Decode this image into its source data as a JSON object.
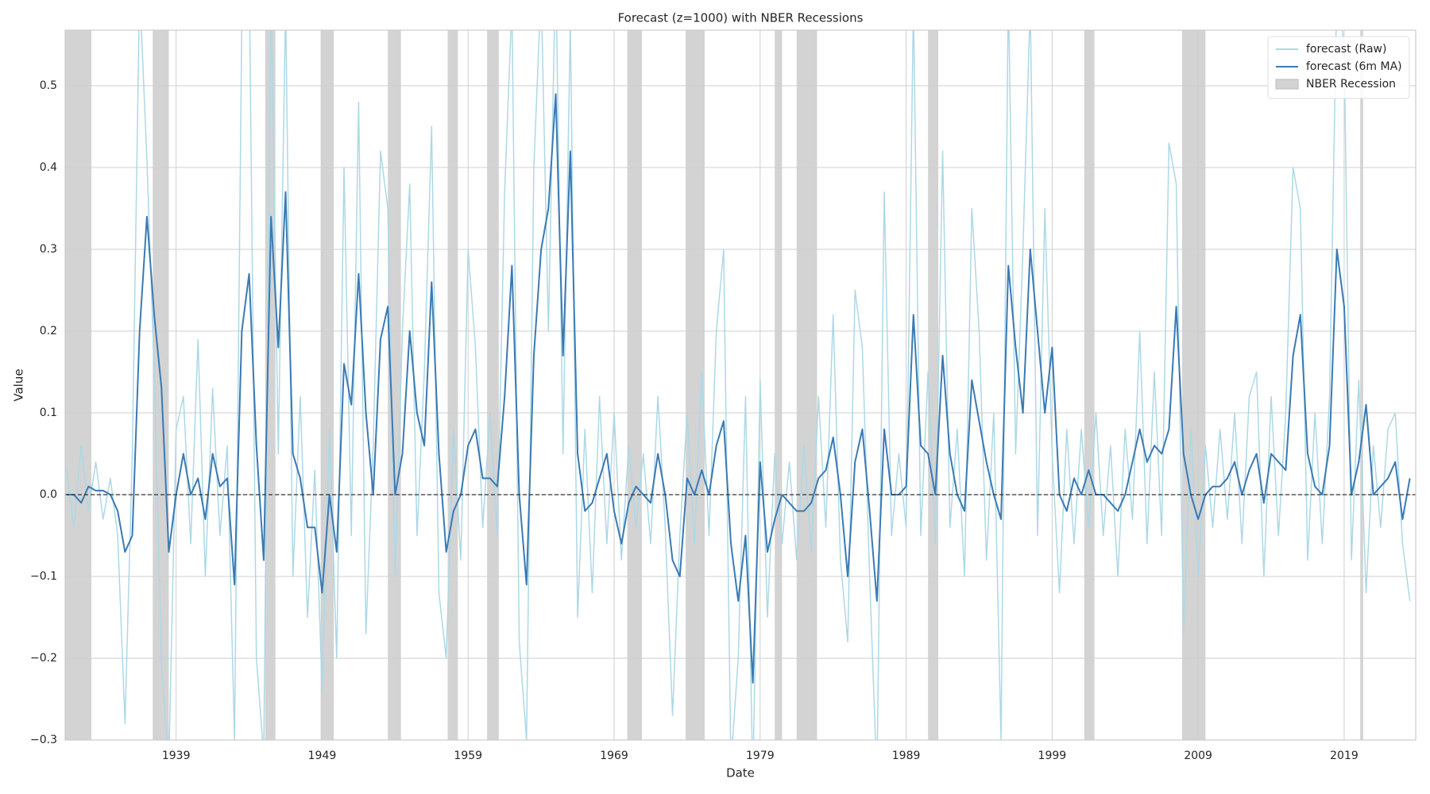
{
  "chart_data": {
    "type": "line",
    "title": "Forecast (z=1000) with NBER Recessions",
    "x_label": "Date",
    "y_label": "Value",
    "xlim": [
      1931.4,
      2023.9
    ],
    "xticks": [
      1939,
      1949,
      1959,
      1969,
      1979,
      1989,
      1999,
      2009,
      2019
    ],
    "ylim": [
      -0.3,
      0.568
    ],
    "yticks": [
      {
        "value": -0.3,
        "label": "−0.3"
      },
      {
        "value": -0.2,
        "label": "−0.2"
      },
      {
        "value": -0.1,
        "label": "−0.1"
      },
      {
        "value": 0,
        "label": "0.0"
      },
      0.1,
      0.2,
      0.3,
      0.4,
      0.5
    ],
    "grid": true,
    "legend": "upper right",
    "reference_line": 0,
    "recessions": {
      "name": "NBER Recession",
      "color": "#d3d3d3",
      "periods": [
        [
          1929.6,
          1933.2
        ],
        [
          1937.4,
          1938.5
        ],
        [
          1945.1,
          1945.8
        ],
        [
          1948.9,
          1949.8
        ],
        [
          1953.5,
          1954.4
        ],
        [
          1957.6,
          1958.3
        ],
        [
          1960.3,
          1961.1
        ],
        [
          1969.9,
          1970.9
        ],
        [
          1973.9,
          1975.2
        ],
        [
          1980.0,
          1980.5
        ],
        [
          1981.5,
          1982.9
        ],
        [
          1990.5,
          1991.2
        ],
        [
          2001.2,
          2001.9
        ],
        [
          2007.9,
          2009.5
        ],
        [
          2020.1,
          2020.3
        ]
      ]
    },
    "x": [
      1931.5,
      1932,
      1932.5,
      1933,
      1933.5,
      1934,
      1934.5,
      1935,
      1935.5,
      1936,
      1936.5,
      1937,
      1937.5,
      1938,
      1938.5,
      1939,
      1939.5,
      1940,
      1940.5,
      1941,
      1941.5,
      1942,
      1942.5,
      1943,
      1943.5,
      1944,
      1944.5,
      1945,
      1945.5,
      1946,
      1946.5,
      1947,
      1947.5,
      1948,
      1948.5,
      1949,
      1949.5,
      1950,
      1950.5,
      1951,
      1951.5,
      1952,
      1952.5,
      1953,
      1953.5,
      1954,
      1954.5,
      1955,
      1955.5,
      1956,
      1956.5,
      1957,
      1957.5,
      1958,
      1958.5,
      1959,
      1959.5,
      1960,
      1960.5,
      1961,
      1961.5,
      1962,
      1962.5,
      1963,
      1963.5,
      1964,
      1964.5,
      1965,
      1965.5,
      1966,
      1966.5,
      1967,
      1967.5,
      1968,
      1968.5,
      1969,
      1969.5,
      1970,
      1970.5,
      1971,
      1971.5,
      1972,
      1972.5,
      1973,
      1973.5,
      1974,
      1974.5,
      1975,
      1975.5,
      1976,
      1976.5,
      1977,
      1977.5,
      1978,
      1978.5,
      1979,
      1979.5,
      1980,
      1980.5,
      1981,
      1981.5,
      1982,
      1982.5,
      1983,
      1983.5,
      1984,
      1984.5,
      1985,
      1985.5,
      1986,
      1986.5,
      1987,
      1987.5,
      1988,
      1988.5,
      1989,
      1989.5,
      1990,
      1990.5,
      1991,
      1991.5,
      1992,
      1992.5,
      1993,
      1993.5,
      1994,
      1994.5,
      1995,
      1995.5,
      1996,
      1996.5,
      1997,
      1997.5,
      1998,
      1998.5,
      1999,
      1999.5,
      2000,
      2000.5,
      2001,
      2001.5,
      2002,
      2002.5,
      2003,
      2003.5,
      2004,
      2004.5,
      2005,
      2005.5,
      2006,
      2006.5,
      2007,
      2007.5,
      2008,
      2008.5,
      2009,
      2009.5,
      2010,
      2010.5,
      2011,
      2011.5,
      2012,
      2012.5,
      2013,
      2013.5,
      2014,
      2014.5,
      2015,
      2015.5,
      2016,
      2016.5,
      2017,
      2017.5,
      2018,
      2018.5,
      2019,
      2019.5,
      2020,
      2020.5,
      2021,
      2021.5,
      2022,
      2022.5,
      2023,
      2023.5
    ],
    "series": [
      {
        "name": "forecast (Raw)",
        "color": "#add8e6",
        "values": [
          0.03,
          -0.04,
          0.06,
          -0.02,
          0.04,
          -0.03,
          0.02,
          -0.05,
          -0.28,
          0.05,
          0.62,
          0.41,
          0.15,
          -0.21,
          -0.33,
          0.08,
          0.12,
          -0.06,
          0.19,
          -0.1,
          0.13,
          -0.05,
          0.06,
          -0.3,
          0.58,
          0.65,
          -0.2,
          -0.32,
          0.62,
          0.05,
          0.6,
          -0.1,
          0.12,
          -0.15,
          0.03,
          -0.24,
          0.08,
          -0.2,
          0.4,
          -0.05,
          0.48,
          -0.17,
          0.06,
          0.42,
          0.35,
          -0.1,
          0.2,
          0.38,
          -0.05,
          0.15,
          0.45,
          -0.12,
          -0.2,
          0.08,
          -0.08,
          0.3,
          0.18,
          -0.04,
          0.1,
          -0.05,
          0.37,
          0.6,
          -0.18,
          -0.3,
          0.4,
          0.62,
          0.2,
          0.65,
          0.05,
          0.58,
          -0.15,
          0.08,
          -0.12,
          0.12,
          -0.06,
          0.1,
          -0.08,
          0.06,
          -0.04,
          0.05,
          -0.06,
          0.12,
          -0.04,
          -0.27,
          -0.05,
          0.1,
          -0.06,
          0.15,
          -0.05,
          0.2,
          0.3,
          -0.33,
          -0.2,
          0.12,
          -0.35,
          0.14,
          -0.15,
          0.05,
          -0.06,
          0.04,
          -0.08,
          0.06,
          -0.07,
          0.12,
          -0.04,
          0.22,
          -0.08,
          -0.18,
          0.25,
          0.18,
          -0.1,
          -0.35,
          0.37,
          -0.05,
          0.05,
          -0.04,
          0.6,
          -0.05,
          0.15,
          -0.06,
          0.42,
          -0.04,
          0.08,
          -0.1,
          0.35,
          0.2,
          -0.08,
          0.1,
          -0.3,
          0.62,
          0.05,
          0.3,
          0.6,
          -0.05,
          0.35,
          0.05,
          -0.12,
          0.08,
          -0.06,
          0.08,
          -0.04,
          0.1,
          -0.05,
          0.06,
          -0.1,
          0.08,
          -0.03,
          0.2,
          -0.06,
          0.15,
          -0.05,
          0.43,
          0.38,
          -0.17,
          0.08,
          -0.1,
          0.06,
          -0.04,
          0.08,
          -0.03,
          0.1,
          -0.06,
          0.12,
          0.15,
          -0.1,
          0.12,
          -0.05,
          0.1,
          0.4,
          0.35,
          -0.08,
          0.1,
          -0.06,
          0.12,
          0.62,
          0.55,
          -0.08,
          0.14,
          -0.12,
          0.06,
          -0.04,
          0.08,
          0.1,
          -0.06,
          -0.13
        ]
      },
      {
        "name": "forecast (6m MA)",
        "color": "#3a7ab3",
        "values": [
          0.0,
          0.0,
          -0.01,
          0.01,
          0.005,
          0.005,
          0.0,
          -0.02,
          -0.07,
          -0.05,
          0.2,
          0.34,
          0.22,
          0.13,
          -0.07,
          0.0,
          0.05,
          0.0,
          0.02,
          -0.03,
          0.05,
          0.01,
          0.02,
          -0.11,
          0.2,
          0.27,
          0.06,
          -0.08,
          0.34,
          0.18,
          0.37,
          0.05,
          0.02,
          -0.04,
          -0.04,
          -0.12,
          0.0,
          -0.07,
          0.16,
          0.11,
          0.27,
          0.1,
          0.0,
          0.19,
          0.23,
          0.0,
          0.05,
          0.2,
          0.1,
          0.06,
          0.26,
          0.05,
          -0.07,
          -0.02,
          0.0,
          0.06,
          0.08,
          0.02,
          0.02,
          0.01,
          0.12,
          0.28,
          0.0,
          -0.11,
          0.17,
          0.3,
          0.35,
          0.49,
          0.17,
          0.42,
          0.05,
          -0.02,
          -0.01,
          0.02,
          0.05,
          -0.02,
          -0.06,
          -0.01,
          0.01,
          0.0,
          -0.01,
          0.05,
          0.0,
          -0.08,
          -0.1,
          0.02,
          0.0,
          0.03,
          0.0,
          0.06,
          0.09,
          -0.06,
          -0.13,
          -0.05,
          -0.23,
          0.04,
          -0.07,
          -0.03,
          0.0,
          -0.01,
          -0.02,
          -0.02,
          -0.01,
          0.02,
          0.03,
          0.07,
          0.0,
          -0.1,
          0.04,
          0.08,
          -0.02,
          -0.13,
          0.08,
          0.0,
          0.0,
          0.01,
          0.22,
          0.06,
          0.05,
          0.0,
          0.17,
          0.05,
          0.0,
          -0.02,
          0.14,
          0.09,
          0.04,
          0.0,
          -0.03,
          0.28,
          0.18,
          0.1,
          0.3,
          0.2,
          0.1,
          0.18,
          0.0,
          -0.02,
          0.02,
          0.0,
          0.03,
          0.0,
          0.0,
          -0.01,
          -0.02,
          0.0,
          0.04,
          0.08,
          0.04,
          0.06,
          0.05,
          0.08,
          0.23,
          0.05,
          0.0,
          -0.03,
          0.0,
          0.01,
          0.01,
          0.02,
          0.04,
          0.0,
          0.03,
          0.05,
          -0.01,
          0.05,
          0.04,
          0.03,
          0.17,
          0.22,
          0.05,
          0.01,
          0.0,
          0.06,
          0.3,
          0.23,
          0.0,
          0.04,
          0.11,
          0.0,
          0.01,
          0.02,
          0.04,
          -0.03,
          0.02
        ]
      }
    ]
  }
}
